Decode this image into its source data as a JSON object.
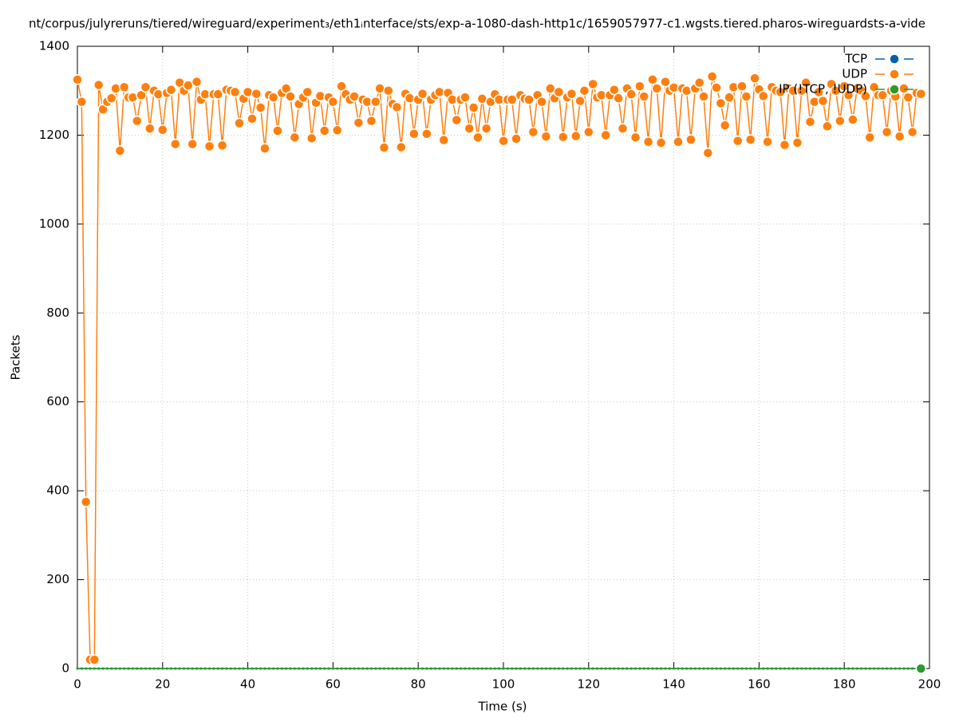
{
  "chart_data": {
    "type": "line",
    "title": "nt/corpus/julyreruns/tiered/wireguard/experiment₃/eth1ᵢnterface/sts/exp-a-1080-dash-http1c/1659057977-c1.wgsts.tiered.pharos-wireguardsts-a-vide",
    "xlabel": "Time (s)",
    "ylabel": "Packets",
    "x": [
      0,
      1,
      2,
      3,
      4,
      5,
      6,
      7,
      8,
      9,
      10,
      11,
      12,
      13,
      14,
      15,
      16,
      17,
      18,
      19,
      20,
      21,
      22,
      23,
      24,
      25,
      26,
      27,
      28,
      29,
      30,
      31,
      32,
      33,
      34,
      35,
      36,
      37,
      38,
      39,
      40,
      41,
      42,
      43,
      44,
      45,
      46,
      47,
      48,
      49,
      50,
      51,
      52,
      53,
      54,
      55,
      56,
      57,
      58,
      59,
      60,
      61,
      62,
      63,
      64,
      65,
      66,
      67,
      68,
      69,
      70,
      71,
      72,
      73,
      74,
      75,
      76,
      77,
      78,
      79,
      80,
      81,
      82,
      83,
      84,
      85,
      86,
      87,
      88,
      89,
      90,
      91,
      92,
      93,
      94,
      95,
      96,
      97,
      98,
      99,
      100,
      101,
      102,
      103,
      104,
      105,
      106,
      107,
      108,
      109,
      110,
      111,
      112,
      113,
      114,
      115,
      116,
      117,
      118,
      119,
      120,
      121,
      122,
      123,
      124,
      125,
      126,
      127,
      128,
      129,
      130,
      131,
      132,
      133,
      134,
      135,
      136,
      137,
      138,
      139,
      140,
      141,
      142,
      143,
      144,
      145,
      146,
      147,
      148,
      149,
      150,
      151,
      152,
      153,
      154,
      155,
      156,
      157,
      158,
      159,
      160,
      161,
      162,
      163,
      164,
      165,
      166,
      167,
      168,
      169,
      170,
      171,
      172,
      173,
      174,
      175,
      176,
      177,
      178,
      179,
      180,
      181,
      182,
      183,
      184,
      185,
      186,
      187,
      188,
      189,
      190,
      191,
      192,
      193,
      194,
      195,
      196,
      197,
      198
    ],
    "series": [
      {
        "name": "TCP",
        "color": "#0060ad",
        "values": [
          0,
          0,
          0,
          0,
          0,
          0,
          0,
          0,
          0,
          0,
          0,
          0,
          0,
          0,
          0,
          0,
          0,
          0,
          0,
          0,
          0,
          0,
          0,
          0,
          0,
          0,
          0,
          0,
          0,
          0,
          0,
          0,
          0,
          0,
          0,
          0,
          0,
          0,
          0,
          0,
          0,
          0,
          0,
          0,
          0,
          0,
          0,
          0,
          0,
          0,
          0,
          0,
          0,
          0,
          0,
          0,
          0,
          0,
          0,
          0,
          0,
          0,
          0,
          0,
          0,
          0,
          0,
          0,
          0,
          0,
          0,
          0,
          0,
          0,
          0,
          0,
          0,
          0,
          0,
          0,
          0,
          0,
          0,
          0,
          0,
          0,
          0,
          0,
          0,
          0,
          0,
          0,
          0,
          0,
          0,
          0,
          0,
          0,
          0,
          0,
          0,
          0,
          0,
          0,
          0,
          0,
          0,
          0,
          0,
          0,
          0,
          0,
          0,
          0,
          0,
          0,
          0,
          0,
          0,
          0,
          0,
          0,
          0,
          0,
          0,
          0,
          0,
          0,
          0,
          0,
          0,
          0,
          0,
          0,
          0,
          0,
          0,
          0,
          0,
          0,
          0,
          0,
          0,
          0,
          0,
          0,
          0,
          0,
          0,
          0,
          0,
          0,
          0,
          0,
          0,
          0,
          0,
          0,
          0,
          0,
          0,
          0,
          0,
          0,
          0,
          0,
          0,
          0,
          0,
          0,
          0,
          0,
          0,
          0,
          0,
          0,
          0,
          0,
          0,
          0,
          0,
          0,
          0,
          0,
          0,
          0,
          0,
          0,
          0,
          0,
          0,
          0,
          0,
          0,
          0,
          0,
          0,
          0,
          0
        ]
      },
      {
        "name": "UDP",
        "color": "#ff7f0e",
        "values": [
          1325,
          1275,
          375,
          20,
          20,
          1313,
          1258,
          1275,
          1283,
          1305,
          1165,
          1308,
          1285,
          1285,
          1232,
          1290,
          1308,
          1215,
          1300,
          1292,
          1212,
          1295,
          1302,
          1180,
          1318,
          1300,
          1312,
          1180,
          1320,
          1280,
          1292,
          1175,
          1292,
          1292,
          1177,
          1302,
          1300,
          1297,
          1227,
          1282,
          1297,
          1237,
          1293,
          1262,
          1170,
          1290,
          1285,
          1210,
          1295,
          1305,
          1287,
          1195,
          1270,
          1285,
          1297,
          1193,
          1273,
          1288,
          1210,
          1285,
          1275,
          1211,
          1310,
          1292,
          1280,
          1287,
          1228,
          1280,
          1275,
          1232,
          1275,
          1305,
          1172,
          1300,
          1270,
          1263,
          1173,
          1293,
          1283,
          1203,
          1280,
          1293,
          1203,
          1280,
          1290,
          1297,
          1189,
          1295,
          1280,
          1234,
          1280,
          1285,
          1215,
          1262,
          1195,
          1282,
          1215,
          1275,
          1292,
          1280,
          1187,
          1280,
          1280,
          1192,
          1290,
          1282,
          1280,
          1207,
          1290,
          1275,
          1197,
          1305,
          1283,
          1297,
          1196,
          1285,
          1293,
          1198,
          1277,
          1300,
          1207,
          1315,
          1285,
          1290,
          1200,
          1290,
          1302,
          1283,
          1215,
          1305,
          1292,
          1195,
          1310,
          1287,
          1185,
          1325,
          1305,
          1183,
          1320,
          1300,
          1307,
          1185,
          1305,
          1300,
          1190,
          1305,
          1318,
          1287,
          1160,
          1332,
          1307,
          1272,
          1222,
          1285,
          1308,
          1187,
          1310,
          1287,
          1190,
          1328,
          1303,
          1288,
          1185,
          1308,
          1300,
          1297,
          1178,
          1305,
          1300,
          1183,
          1300,
          1318,
          1230,
          1275,
          1297,
          1277,
          1220,
          1315,
          1300,
          1232,
          1310,
          1290,
          1235,
          1305,
          1300,
          1288,
          1195,
          1308,
          1290,
          1290,
          1207,
          1300,
          1287,
          1197,
          1305,
          1285,
          1207,
          1295,
          1293
        ]
      },
      {
        "name": "IP (!TCP, !UDP)",
        "color": "#2a9a2a",
        "values": [
          0,
          0,
          0,
          0,
          0,
          0,
          0,
          0,
          0,
          0,
          0,
          0,
          0,
          0,
          0,
          0,
          0,
          0,
          0,
          0,
          0,
          0,
          0,
          0,
          0,
          0,
          0,
          0,
          0,
          0,
          0,
          0,
          0,
          0,
          0,
          0,
          0,
          0,
          0,
          0,
          0,
          0,
          0,
          0,
          0,
          0,
          0,
          0,
          0,
          0,
          0,
          0,
          0,
          0,
          0,
          0,
          0,
          0,
          0,
          0,
          0,
          0,
          0,
          0,
          0,
          0,
          0,
          0,
          0,
          0,
          0,
          0,
          0,
          0,
          0,
          0,
          0,
          0,
          0,
          0,
          0,
          0,
          0,
          0,
          0,
          0,
          0,
          0,
          0,
          0,
          0,
          0,
          0,
          0,
          0,
          0,
          0,
          0,
          0,
          0,
          0,
          0,
          0,
          0,
          0,
          0,
          0,
          0,
          0,
          0,
          0,
          0,
          0,
          0,
          0,
          0,
          0,
          0,
          0,
          0,
          0,
          0,
          0,
          0,
          0,
          0,
          0,
          0,
          0,
          0,
          0,
          0,
          0,
          0,
          0,
          0,
          0,
          0,
          0,
          0,
          0,
          0,
          0,
          0,
          0,
          0,
          0,
          0,
          0,
          0,
          0,
          0,
          0,
          0,
          0,
          0,
          0,
          0,
          0,
          0,
          0,
          0,
          0,
          0,
          0,
          0,
          0,
          0,
          0,
          0,
          0,
          0,
          0,
          0,
          0,
          0,
          0,
          0,
          0,
          0,
          0,
          0,
          0,
          0,
          0,
          0,
          0,
          0,
          0,
          0,
          0,
          0,
          0,
          0,
          0,
          0,
          0,
          0,
          0
        ]
      }
    ],
    "xlim": [
      0,
      200
    ],
    "xticks": [
      0,
      20,
      40,
      60,
      80,
      100,
      120,
      140,
      160,
      180,
      200
    ],
    "ylim": [
      0,
      1400
    ],
    "yticks": [
      0,
      200,
      400,
      600,
      800,
      1000,
      1200,
      1400
    ],
    "grid": true,
    "legend": "top-right"
  }
}
